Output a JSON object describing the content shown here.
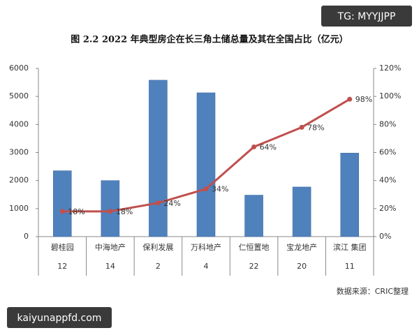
{
  "watermarks": [
    "TG: MYYJJPP",
    "kaiyunappfd.com"
  ],
  "chart_data": {
    "type": "bar-line",
    "title": "图 2.2  2022 年典型房企在长三角土储总量及其在全国占比（亿元）",
    "source": "数据来源：CRIC整理",
    "categories": [
      "碧桂园",
      "中海地产",
      "保利发展",
      "万科地产",
      "仁恒置地",
      "宝龙地产",
      "滨江 集团"
    ],
    "category_numbers": [
      12,
      14,
      2,
      4,
      22,
      20,
      11
    ],
    "series": [
      {
        "type": "bar",
        "color": "#4f81bd",
        "values": [
          2350,
          2000,
          5580,
          5130,
          1480,
          1770,
          2980
        ]
      },
      {
        "type": "line",
        "axis": "y2",
        "color": "#c0504d",
        "values": [
          18,
          18,
          24,
          34,
          64,
          78,
          98
        ],
        "value_labels": [
          "18%",
          "18%",
          "24%",
          "34%",
          "64%",
          "78%",
          "98%"
        ]
      }
    ],
    "ylim": [
      0,
      6000
    ],
    "yticks": [
      0,
      1000,
      2000,
      3000,
      4000,
      5000,
      6000
    ],
    "y2lim": [
      0,
      120
    ],
    "y2ticks": [
      {
        "value": 0,
        "label": "0%"
      },
      {
        "value": 20,
        "label": "20%"
      },
      {
        "value": 40,
        "label": "40%"
      },
      {
        "value": 60,
        "label": "60%"
      },
      {
        "value": 80,
        "label": "80%"
      },
      {
        "value": 100,
        "label": "100%"
      },
      {
        "value": 120,
        "label": "120%"
      }
    ],
    "grid": false
  }
}
